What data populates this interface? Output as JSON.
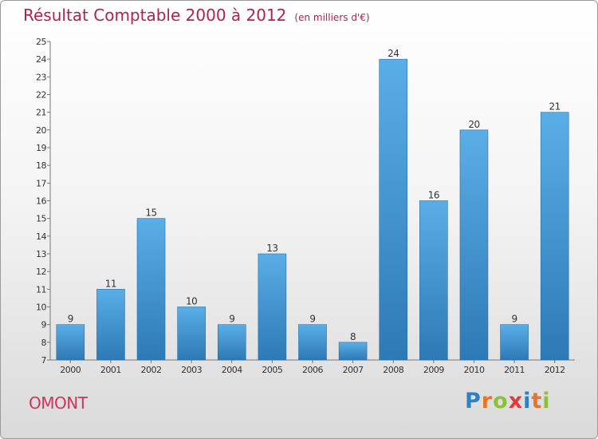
{
  "header": {
    "title": "Résultat Comptable 2000 à 2012",
    "subtitle": "(en milliers d'€)"
  },
  "footer": {
    "place": "OMONT",
    "brand": "Proxiti",
    "brand_letters": [
      {
        "ch": "P",
        "color": "#2f7fc4"
      },
      {
        "ch": "r",
        "color": "#e8742a"
      },
      {
        "ch": "o",
        "color": "#8cbf3a"
      },
      {
        "ch": "x",
        "color": "#e03a3a"
      },
      {
        "ch": "i",
        "color": "#2f7fc4"
      },
      {
        "ch": "t",
        "color": "#e8742a"
      },
      {
        "ch": "i",
        "color": "#8cbf3a"
      }
    ]
  },
  "colors": {
    "title": "#b0224b",
    "bar_light": "#5aaee6",
    "bar_dark": "#2d79b6",
    "axis": "#777777",
    "text": "#333333"
  },
  "chart_data": {
    "type": "bar",
    "title": "Résultat Comptable 2000 à 2012",
    "subtitle": "(en milliers d'€)",
    "xlabel": "",
    "ylabel": "",
    "categories": [
      "2000",
      "2001",
      "2002",
      "2003",
      "2004",
      "2005",
      "2006",
      "2007",
      "2008",
      "2009",
      "2010",
      "2011",
      "2012"
    ],
    "values": [
      9,
      11,
      15,
      10,
      9,
      13,
      9,
      8,
      24,
      16,
      20,
      9,
      21
    ],
    "ylim": [
      7,
      25
    ],
    "yticks": [
      7,
      8,
      9,
      10,
      11,
      12,
      13,
      14,
      15,
      16,
      17,
      18,
      19,
      20,
      21,
      22,
      23,
      24,
      25
    ],
    "grid": false,
    "data_labels": true
  }
}
